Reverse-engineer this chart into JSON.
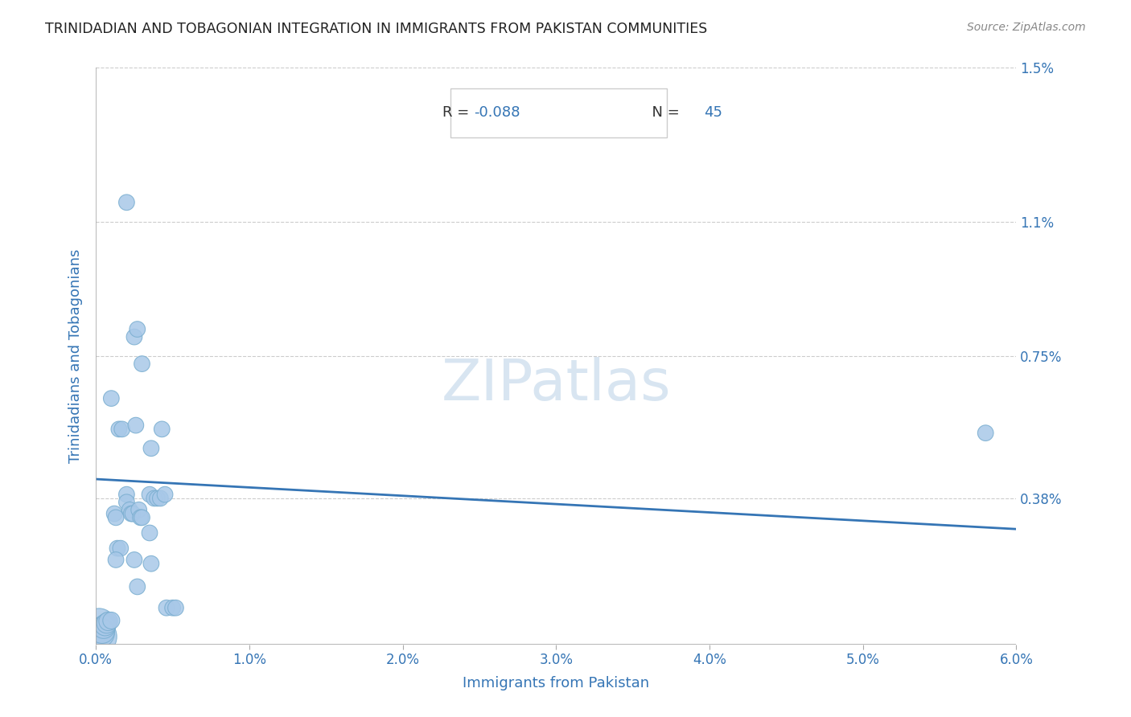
{
  "title": "TRINIDADIAN AND TOBAGONIAN INTEGRATION IN IMMIGRANTS FROM PAKISTAN COMMUNITIES",
  "source": "Source: ZipAtlas.com",
  "xlabel": "Immigrants from Pakistan",
  "ylabel": "Trinidadians and Tobagonians",
  "R": -0.088,
  "N": 45,
  "xlim": [
    0.0,
    0.06
  ],
  "ylim": [
    0.0,
    0.015
  ],
  "xticks": [
    0.0,
    0.01,
    0.02,
    0.03,
    0.04,
    0.05,
    0.06
  ],
  "xticklabels": [
    "0.0%",
    "1.0%",
    "2.0%",
    "3.0%",
    "4.0%",
    "5.0%",
    "6.0%"
  ],
  "yticks": [
    0.0,
    0.0038,
    0.0075,
    0.011,
    0.015
  ],
  "yticklabels": [
    "",
    "0.38%",
    "0.75%",
    "1.1%",
    "1.5%"
  ],
  "scatter_color": "#a8c8e8",
  "scatter_edge_color": "#7aaed0",
  "line_color": "#3575b5",
  "grid_color": "#cccccc",
  "title_color": "#222222",
  "source_color": "#888888",
  "axis_label_color": "#3575b5",
  "tick_label_color": "#3575b5",
  "scatter_points": [
    [
      0.00015,
      0.0002,
      1100
    ],
    [
      0.0002,
      0.0005,
      900
    ],
    [
      0.00025,
      0.0003,
      700
    ],
    [
      0.0004,
      0.00035,
      500
    ],
    [
      0.0005,
      0.00045,
      420
    ],
    [
      0.0006,
      0.0005,
      360
    ],
    [
      0.0007,
      0.00055,
      320
    ],
    [
      0.0008,
      0.0006,
      280
    ],
    [
      0.001,
      0.00062,
      230
    ],
    [
      0.0012,
      0.0034,
      200
    ],
    [
      0.0013,
      0.0033,
      200
    ],
    [
      0.001,
      0.0064,
      200
    ],
    [
      0.002,
      0.0115,
      200
    ],
    [
      0.0015,
      0.0056,
      200
    ],
    [
      0.0017,
      0.0056,
      200
    ],
    [
      0.002,
      0.0039,
      200
    ],
    [
      0.002,
      0.0037,
      200
    ],
    [
      0.0022,
      0.0035,
      200
    ],
    [
      0.0014,
      0.0025,
      200
    ],
    [
      0.0016,
      0.0025,
      200
    ],
    [
      0.0013,
      0.0022,
      200
    ],
    [
      0.0025,
      0.008,
      200
    ],
    [
      0.0027,
      0.0082,
      200
    ],
    [
      0.003,
      0.0073,
      200
    ],
    [
      0.0026,
      0.0057,
      200
    ],
    [
      0.0023,
      0.0034,
      200
    ],
    [
      0.0024,
      0.0034,
      200
    ],
    [
      0.0028,
      0.0035,
      200
    ],
    [
      0.0029,
      0.0033,
      200
    ],
    [
      0.003,
      0.0033,
      200
    ],
    [
      0.0025,
      0.0022,
      200
    ],
    [
      0.0027,
      0.0015,
      200
    ],
    [
      0.0035,
      0.0039,
      200
    ],
    [
      0.0036,
      0.0051,
      200
    ],
    [
      0.0038,
      0.0038,
      200
    ],
    [
      0.004,
      0.0038,
      200
    ],
    [
      0.0042,
      0.0038,
      200
    ],
    [
      0.0043,
      0.0056,
      200
    ],
    [
      0.0035,
      0.0029,
      200
    ],
    [
      0.0036,
      0.0021,
      200
    ],
    [
      0.0045,
      0.0039,
      200
    ],
    [
      0.0046,
      0.00095,
      200
    ],
    [
      0.005,
      0.00095,
      200
    ],
    [
      0.0052,
      0.00095,
      200
    ],
    [
      0.058,
      0.0055,
      200
    ]
  ],
  "line_x": [
    0.0,
    0.06
  ],
  "line_y": [
    0.0043,
    0.003
  ]
}
